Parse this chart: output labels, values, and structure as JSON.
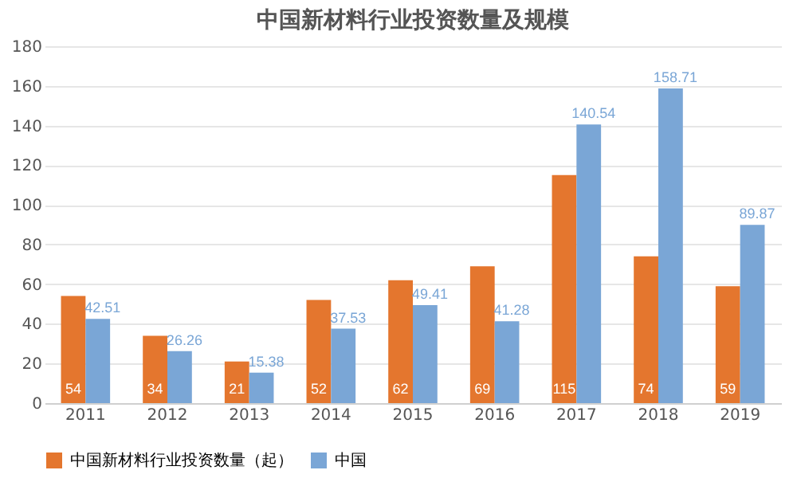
{
  "chart_data": {
    "type": "bar",
    "title": "中国新材料行业投资数量及规模",
    "categories": [
      "2011",
      "2012",
      "2013",
      "2014",
      "2015",
      "2016",
      "2017",
      "2018",
      "2019"
    ],
    "series": [
      {
        "name": "中国新材料行业投资数量（起）",
        "color": "#e4762e",
        "values": [
          54,
          34,
          21,
          52,
          62,
          69,
          115,
          74,
          59
        ]
      },
      {
        "name": "中国",
        "color": "#7aa6d6",
        "values": [
          42.51,
          26.26,
          15.38,
          37.53,
          49.41,
          41.28,
          140.54,
          158.71,
          89.87
        ]
      }
    ],
    "ylim": [
      0,
      180
    ],
    "yticks": [
      0,
      20,
      40,
      60,
      80,
      100,
      120,
      140,
      160,
      180
    ],
    "grid": "y",
    "legend": "bottom",
    "data_labels": true
  }
}
